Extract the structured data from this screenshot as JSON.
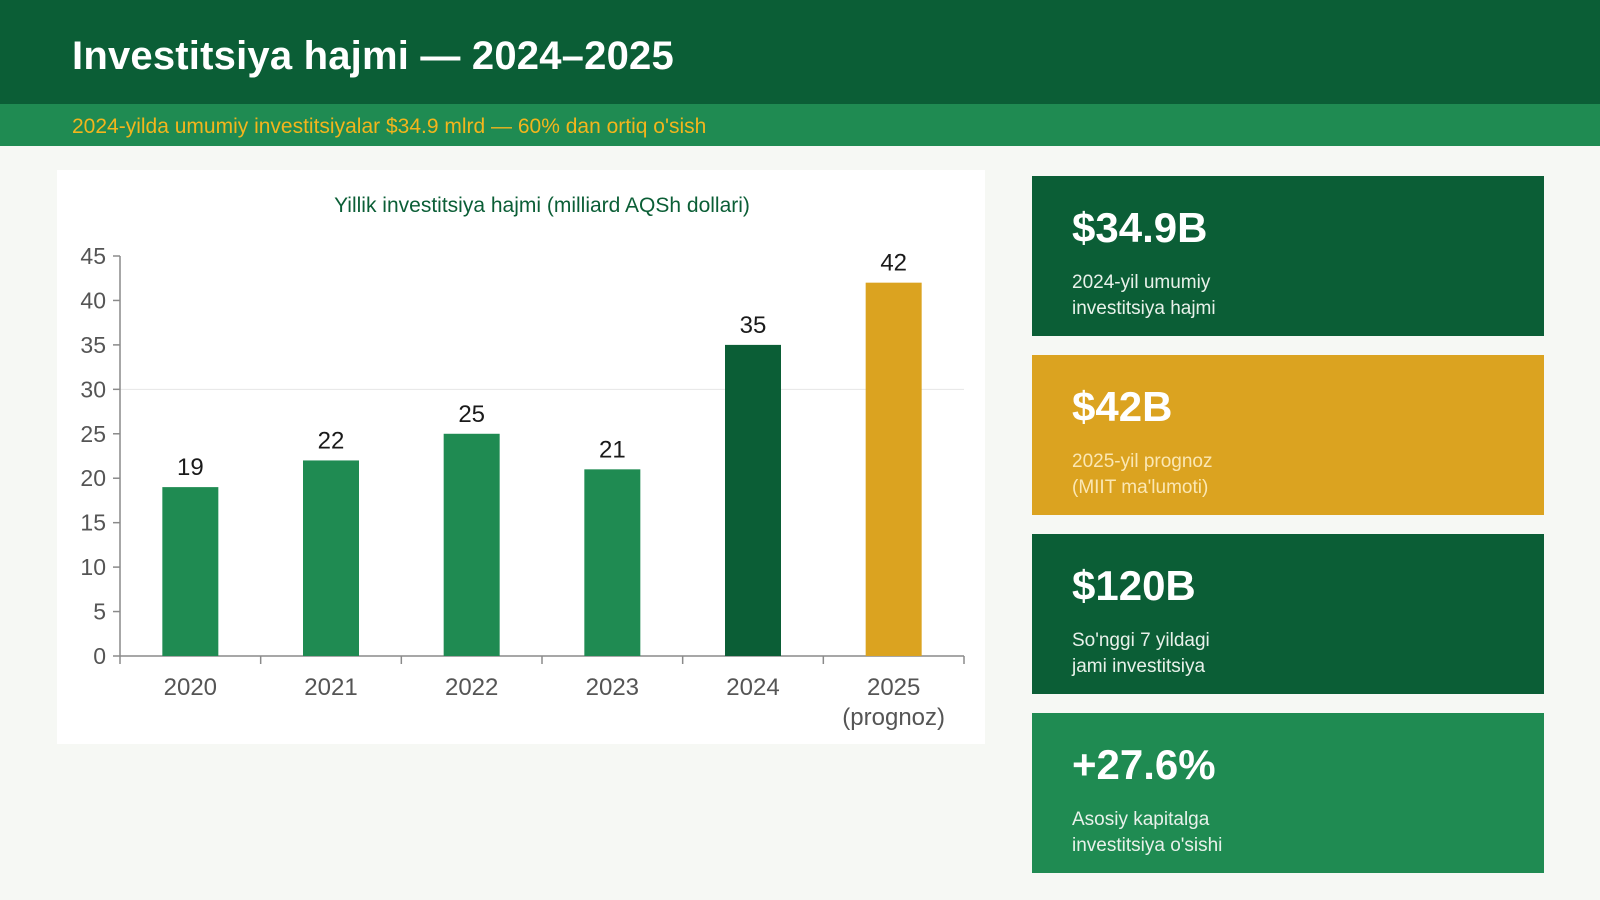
{
  "header": {
    "title": "Investitsiya hajmi — 2024–2025",
    "subtitle": "2024-yilda umumiy investitsiyalar $34.9 mlrd — 60% dan ortiq o'sish"
  },
  "colors": {
    "header_bg": "#0b5e36",
    "subbar_bg": "#1f8b52",
    "accent_gold": "#f3b51c",
    "bar_green": "#1f8b52",
    "bar_dark_green": "#0b5e36",
    "bar_gold": "#dba320"
  },
  "chart_data": {
    "type": "bar",
    "title": "Yillik investitsiya hajmi (milliard AQSh dollari)",
    "xlabel": "",
    "ylabel": "",
    "categories": [
      "2020",
      "2021",
      "2022",
      "2023",
      "2024",
      "2025\n(prognoz)"
    ],
    "values": [
      19,
      22,
      25,
      21,
      35,
      42
    ],
    "bar_colors": [
      "#1f8b52",
      "#1f8b52",
      "#1f8b52",
      "#1f8b52",
      "#0b5e36",
      "#dba320"
    ],
    "ylim": [
      0,
      45
    ],
    "yticks": [
      0,
      5,
      10,
      15,
      20,
      25,
      30,
      35,
      40,
      45
    ],
    "grid": "horizontal line at 30",
    "legend": "none",
    "data_labels": true
  },
  "kpis": [
    {
      "value": "$34.9B",
      "label": "2024-yil umumiy\ninvestitsiya hajmi",
      "color": "#0b5e36"
    },
    {
      "value": "$42B",
      "label": "2025-yil prognoz\n(MIIT ma'lumoti)",
      "color": "#dba320"
    },
    {
      "value": "$120B",
      "label": "So'nggi 7 yildagi\njami investitsiya",
      "color": "#0b5e36"
    },
    {
      "value": "+27.6%",
      "label": "Asosiy kapitalga\ninvestitsiya o'sishi",
      "color": "#1f8b52"
    }
  ]
}
